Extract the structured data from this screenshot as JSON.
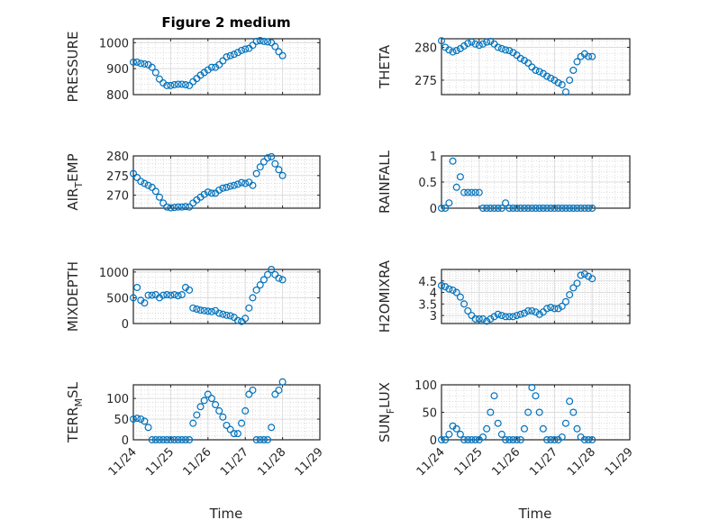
{
  "title": "Figure 2 medium",
  "xlabel": "Time",
  "colors": {
    "marker": "#0072BD",
    "axis": "#262626",
    "grid": "#dcdcdc"
  },
  "chart_data": {
    "type": "scatter",
    "title": "Figure 2 medium",
    "x_unit": "days since 11/24",
    "x": [
      0,
      0.1,
      0.2,
      0.3,
      0.4,
      0.5,
      0.6,
      0.7,
      0.8,
      0.9,
      1.0,
      1.1,
      1.2,
      1.3,
      1.4,
      1.5,
      1.6,
      1.7,
      1.8,
      1.9,
      2.0,
      2.1,
      2.2,
      2.3,
      2.4,
      2.5,
      2.6,
      2.7,
      2.8,
      2.9,
      3.0,
      3.1,
      3.2,
      3.3,
      3.4,
      3.5,
      3.6,
      3.7,
      3.8,
      3.9,
      4.0
    ],
    "xlim": [
      0,
      5
    ],
    "xticks": [
      0,
      1,
      2,
      3,
      4,
      5
    ],
    "xticklabels": [
      "11/24",
      "11/25",
      "11/26",
      "11/27",
      "11/28",
      "11/29"
    ],
    "grid": true,
    "subplots": [
      {
        "ylabel": "PRESSURE",
        "ylim": [
          800,
          1015
        ],
        "yticks": [
          800,
          900,
          1000
        ],
        "yticklabels": [
          "800",
          "900",
          "1000"
        ],
        "values": [
          925,
          925,
          920,
          918,
          915,
          905,
          885,
          860,
          845,
          835,
          835,
          838,
          840,
          840,
          838,
          835,
          850,
          862,
          875,
          885,
          895,
          905,
          905,
          915,
          930,
          945,
          950,
          955,
          962,
          970,
          975,
          978,
          990,
          1005,
          1008,
          1005,
          1003,
          1000,
          985,
          965,
          950
        ]
      },
      {
        "ylabel": "THETA",
        "ylim": [
          272.8,
          281.3
        ],
        "yticks": [
          275,
          280
        ],
        "yticklabels": [
          "275",
          "280"
        ],
        "values": [
          281,
          280,
          279.6,
          279.3,
          279.5,
          279.8,
          280.2,
          280.6,
          280.8,
          280.5,
          280.3,
          280.5,
          280.8,
          280.9,
          280.5,
          280,
          279.8,
          279.6,
          279.5,
          279.2,
          278.8,
          278.3,
          278,
          277.6,
          277,
          276.5,
          276.3,
          276,
          275.6,
          275.3,
          275,
          274.6,
          274.3,
          273.2,
          275,
          276.5,
          277.8,
          278.6,
          279,
          278.6,
          278.6
        ]
      },
      {
        "ylabel": "AIR_TEMP",
        "ylim": [
          266.7,
          280
        ],
        "yticks": [
          270,
          275,
          280
        ],
        "yticklabels": [
          "270",
          "275",
          "280"
        ],
        "values": [
          275.5,
          274.5,
          273.5,
          273,
          272.5,
          272,
          271,
          269.5,
          268,
          267,
          266.8,
          266.9,
          267,
          267,
          267.1,
          267,
          268,
          268.8,
          269.5,
          270.2,
          270.8,
          270.5,
          270.5,
          271.3,
          271.8,
          272,
          272.3,
          272.5,
          272.8,
          273.2,
          273,
          273.3,
          272.5,
          275.5,
          277.2,
          278.5,
          279.5,
          279.8,
          278,
          276.5,
          275
        ]
      },
      {
        "ylabel": "RAINFALL",
        "ylim": [
          0,
          1
        ],
        "yticks": [
          0,
          0.5,
          1
        ],
        "yticklabels": [
          "0",
          "0.5",
          "1"
        ],
        "values": [
          0,
          0,
          0.1,
          0.9,
          0.4,
          0.6,
          0.3,
          0.3,
          0.3,
          0.3,
          0.3,
          0,
          0,
          0,
          0,
          0,
          0,
          0.1,
          0,
          0,
          0,
          0,
          0,
          0,
          0,
          0,
          0,
          0,
          0,
          0,
          0,
          0,
          0,
          0,
          0,
          0,
          0,
          0,
          0,
          0,
          0
        ]
      },
      {
        "ylabel": "MIXDEPTH",
        "ylim": [
          0,
          1050
        ],
        "yticks": [
          0,
          500,
          1000
        ],
        "yticklabels": [
          "0",
          "500",
          "1000"
        ],
        "values": [
          500,
          700,
          450,
          400,
          550,
          550,
          560,
          500,
          550,
          560,
          550,
          560,
          540,
          560,
          700,
          650,
          300,
          280,
          260,
          250,
          240,
          230,
          250,
          200,
          180,
          160,
          150,
          120,
          60,
          40,
          100,
          300,
          500,
          650,
          750,
          850,
          950,
          1050,
          950,
          880,
          850
        ]
      },
      {
        "ylabel": "H2OMIXRA",
        "ylim": [
          2.65,
          5.0
        ],
        "yticks": [
          3,
          3.5,
          4,
          4.5
        ],
        "yticklabels": [
          "3",
          "3.5",
          "4",
          "4.5"
        ],
        "values": [
          4.3,
          4.25,
          4.15,
          4.1,
          4.0,
          3.8,
          3.5,
          3.2,
          3.0,
          2.85,
          2.85,
          2.85,
          2.75,
          2.85,
          2.95,
          3.05,
          3.0,
          2.95,
          2.95,
          2.95,
          3.0,
          3.05,
          3.1,
          3.2,
          3.2,
          3.15,
          3.05,
          3.15,
          3.3,
          3.35,
          3.3,
          3.3,
          3.4,
          3.6,
          3.9,
          4.2,
          4.4,
          4.75,
          4.8,
          4.7,
          4.6
        ]
      },
      {
        "ylabel": "TERR_MSL",
        "ylim": [
          0,
          133
        ],
        "yticks": [
          0,
          50,
          100
        ],
        "yticklabels": [
          "0",
          "50",
          "100"
        ],
        "values": [
          50,
          52,
          50,
          45,
          30,
          0,
          0,
          0,
          0,
          0,
          0,
          0,
          0,
          0,
          0,
          0,
          40,
          60,
          80,
          95,
          110,
          100,
          85,
          70,
          55,
          35,
          25,
          15,
          15,
          40,
          70,
          110,
          120,
          0,
          0,
          0,
          0,
          30,
          110,
          120,
          140
        ]
      },
      {
        "ylabel": "SUN_FLUX",
        "ylim": [
          0,
          100
        ],
        "yticks": [
          0,
          50,
          100
        ],
        "yticklabels": [
          "0",
          "50",
          "100"
        ],
        "values": [
          0,
          0,
          10,
          25,
          20,
          10,
          0,
          0,
          0,
          0,
          0,
          5,
          20,
          50,
          80,
          30,
          10,
          0,
          0,
          0,
          0,
          0,
          20,
          50,
          95,
          80,
          50,
          20,
          0,
          0,
          0,
          0,
          5,
          30,
          70,
          50,
          20,
          5,
          0,
          0,
          0
        ]
      }
    ]
  }
}
